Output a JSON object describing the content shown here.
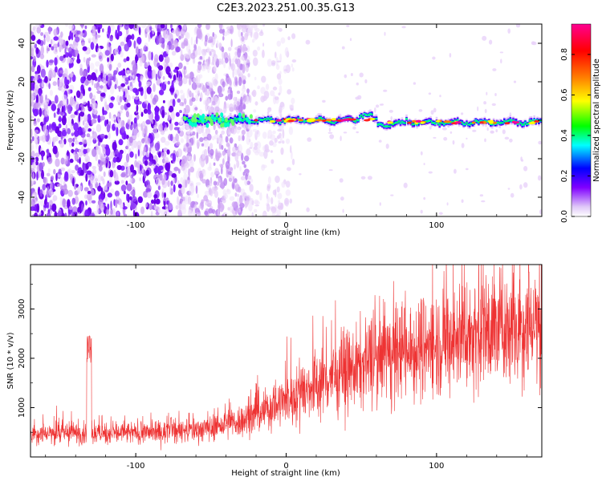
{
  "figure": {
    "title": "C2E3.2023.251.00.35.G13"
  },
  "chart_data": [
    {
      "type": "heatmap",
      "xlabel": "Height of straight line (km)",
      "ylabel": "Frequency (Hz)",
      "xlim": [
        -170,
        170
      ],
      "ylim": [
        -50,
        50
      ],
      "x_ticks": [
        -100,
        0,
        100
      ],
      "y_ticks": [
        -40,
        -20,
        0,
        20,
        40
      ],
      "colorbar": {
        "label": "Normalized spectral amplitude",
        "range": [
          0,
          0.95
        ],
        "ticks": [
          0.0,
          0.2,
          0.4,
          0.6,
          0.8
        ],
        "colors": [
          "#e9d8f7",
          "#7a00ff",
          "#0000ff",
          "#00ffff",
          "#00ff00",
          "#ffff00",
          "#ff8000",
          "#ff0000",
          "#ff0090"
        ]
      },
      "features": {
        "noise_region_x": [
          -170,
          -25
        ],
        "signal_start_x": -68,
        "signal_freq_hz": 0,
        "signal_end_x": 170
      }
    },
    {
      "type": "line",
      "xlabel": "Height of straight line (km)",
      "ylabel": "SNR (10 * v/v)",
      "xlim": [
        -170,
        170
      ],
      "ylim": [
        0,
        3900
      ],
      "x_ticks": [
        -100,
        0,
        100
      ],
      "y_ticks": [
        1000,
        2000,
        3000
      ],
      "color": "#ee3333",
      "trend": {
        "x": [
          -170,
          -120,
          -80,
          -50,
          -25,
          0,
          25,
          50,
          75,
          100,
          125,
          150,
          170
        ],
        "y": [
          480,
          480,
          500,
          580,
          780,
          1150,
          1550,
          1850,
          2100,
          2300,
          2500,
          2650,
          2750
        ]
      },
      "spike": {
        "x": -131,
        "y": 2480
      }
    }
  ]
}
